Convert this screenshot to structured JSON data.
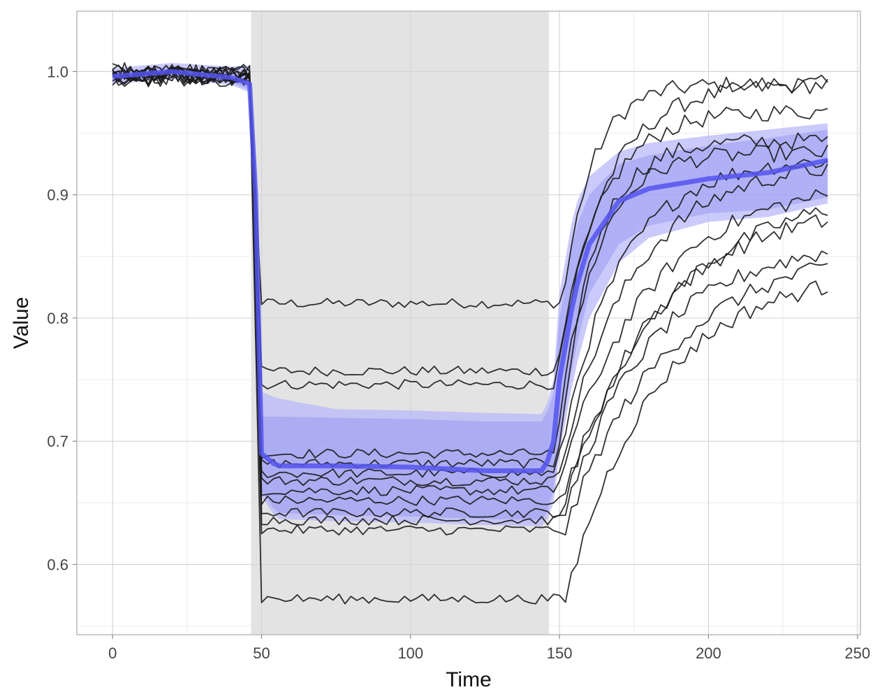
{
  "chart_data": {
    "type": "line",
    "title": "",
    "xlabel": "Time",
    "ylabel": "Value",
    "xlim": [
      -12,
      251
    ],
    "ylim": [
      0.543,
      1.049
    ],
    "x_ticks": [
      0,
      50,
      100,
      150,
      200,
      250
    ],
    "y_ticks": [
      0.6,
      0.7,
      0.8,
      0.9,
      1.0
    ],
    "x_tick_labels": [
      "0",
      "50",
      "100",
      "150",
      "200",
      "250"
    ],
    "y_tick_labels": [
      "0.6",
      "0.7",
      "0.8",
      "0.9",
      "1.0"
    ],
    "grid": true,
    "legend": "none",
    "shaded_region": {
      "x_start": 46.5,
      "x_end": 146.5,
      "color": "#e3e3e3"
    },
    "colors": {
      "individual_lines": "#1a1a1a",
      "mean_line": "#5555ee",
      "inner_band": "#8080ee",
      "outer_band": "#b8b8fa",
      "grid": "#dddddd",
      "panel_border": "#bbbbbb"
    },
    "series": [
      {
        "role": "individual",
        "baseline": 0.995,
        "plateau": 0.812,
        "final": 0.99,
        "dip_time": 48,
        "recovery_time": 151,
        "tau": 10
      },
      {
        "role": "individual",
        "baseline": 0.996,
        "plateau": 0.757,
        "final": 0.99,
        "dip_time": 48,
        "recovery_time": 149,
        "tau": 16
      },
      {
        "role": "individual",
        "baseline": 0.998,
        "plateau": 0.746,
        "final": 0.968,
        "dip_time": 48,
        "recovery_time": 149,
        "tau": 14
      },
      {
        "role": "individual",
        "baseline": 0.999,
        "plateau": 0.69,
        "final": 0.944,
        "dip_time": 48,
        "recovery_time": 149,
        "tau": 12
      },
      {
        "role": "individual",
        "baseline": 1.0,
        "plateau": 0.682,
        "final": 0.934,
        "dip_time": 48,
        "recovery_time": 149,
        "tau": 12
      },
      {
        "role": "individual",
        "baseline": 0.997,
        "plateau": 0.674,
        "final": 0.93,
        "dip_time": 48,
        "recovery_time": 149,
        "tau": 20
      },
      {
        "role": "individual",
        "baseline": 0.998,
        "plateau": 0.668,
        "final": 0.928,
        "dip_time": 48,
        "recovery_time": 149,
        "tau": 25
      },
      {
        "role": "individual",
        "baseline": 0.999,
        "plateau": 0.66,
        "final": 0.912,
        "dip_time": 48,
        "recovery_time": 149,
        "tau": 30
      },
      {
        "role": "individual",
        "baseline": 0.996,
        "plateau": 0.652,
        "final": 0.908,
        "dip_time": 48,
        "recovery_time": 151,
        "tau": 35
      },
      {
        "role": "individual",
        "baseline": 0.995,
        "plateau": 0.642,
        "final": 0.892,
        "dip_time": 48,
        "recovery_time": 151,
        "tau": 30
      },
      {
        "role": "individual",
        "baseline": 0.997,
        "plateau": 0.636,
        "final": 0.865,
        "dip_time": 48,
        "recovery_time": 151,
        "tau": 30
      },
      {
        "role": "individual",
        "baseline": 0.996,
        "plateau": 0.628,
        "final": 0.86,
        "dip_time": 48,
        "recovery_time": 152,
        "tau": 35
      },
      {
        "role": "individual",
        "baseline": 0.996,
        "plateau": 0.572,
        "final": 0.84,
        "dip_time": 48,
        "recovery_time": 152,
        "tau": 30
      }
    ],
    "mean_series": {
      "x": [
        0,
        20,
        40,
        46,
        48,
        50,
        55,
        75,
        100,
        125,
        145,
        148,
        150,
        155,
        160,
        170,
        180,
        200,
        220,
        240
      ],
      "y": [
        0.996,
        1.0,
        0.995,
        0.99,
        0.9,
        0.69,
        0.68,
        0.68,
        0.679,
        0.676,
        0.676,
        0.7,
        0.75,
        0.82,
        0.86,
        0.895,
        0.905,
        0.913,
        0.918,
        0.928
      ],
      "inner_band_lower": [
        0.992,
        0.996,
        0.991,
        0.985,
        0.89,
        0.66,
        0.642,
        0.64,
        0.639,
        0.637,
        0.636,
        0.66,
        0.7,
        0.77,
        0.82,
        0.86,
        0.875,
        0.885,
        0.888,
        0.898
      ],
      "inner_band_upper": [
        1.0,
        1.004,
        1.0,
        0.995,
        0.91,
        0.72,
        0.72,
        0.719,
        0.718,
        0.716,
        0.716,
        0.74,
        0.8,
        0.87,
        0.9,
        0.925,
        0.932,
        0.94,
        0.946,
        0.953
      ],
      "outer_band_lower": [
        0.99,
        0.994,
        0.989,
        0.983,
        0.88,
        0.655,
        0.637,
        0.635,
        0.634,
        0.632,
        0.631,
        0.65,
        0.69,
        0.755,
        0.8,
        0.845,
        0.865,
        0.878,
        0.882,
        0.893
      ],
      "outer_band_upper": [
        1.003,
        1.007,
        1.004,
        1.005,
        0.93,
        0.74,
        0.735,
        0.726,
        0.725,
        0.723,
        0.722,
        0.75,
        0.82,
        0.89,
        0.915,
        0.935,
        0.942,
        0.948,
        0.953,
        0.958
      ]
    }
  }
}
